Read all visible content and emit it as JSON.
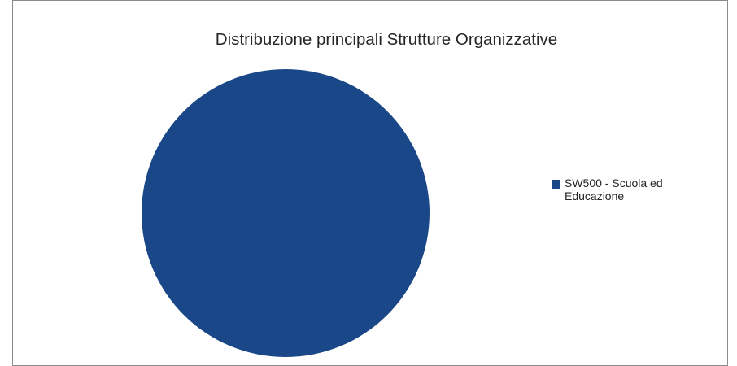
{
  "chart_data": {
    "type": "pie",
    "title": "Distribuzione principali Strutture Organizzative",
    "slices": [
      {
        "label": "SW500 - Scuola ed Educazione",
        "value": 100,
        "color": "#194787"
      }
    ],
    "legend_position": "right"
  }
}
